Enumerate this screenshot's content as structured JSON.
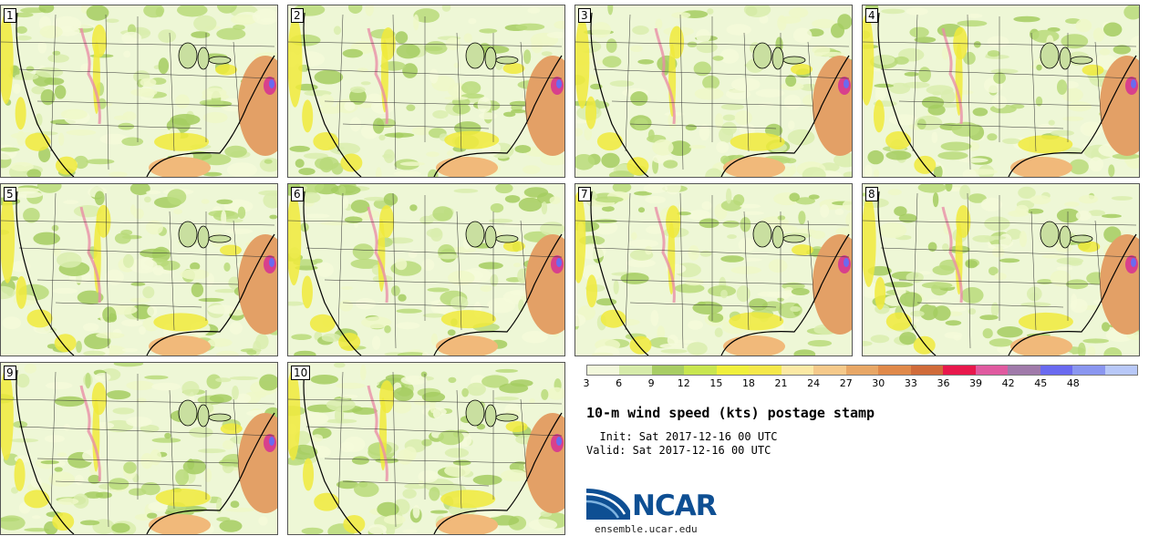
{
  "stamps": [
    {
      "label": "1"
    },
    {
      "label": "2"
    },
    {
      "label": "3"
    },
    {
      "label": "4"
    },
    {
      "label": "5"
    },
    {
      "label": "6"
    },
    {
      "label": "7"
    },
    {
      "label": "8"
    },
    {
      "label": "9"
    },
    {
      "label": "10"
    }
  ],
  "colorbar": {
    "ticks": [
      "3",
      "6",
      "9",
      "12",
      "15",
      "18",
      "21",
      "24",
      "27",
      "30",
      "33",
      "36",
      "39",
      "42",
      "45",
      "48"
    ],
    "colors": [
      "#f2f8dc",
      "#d6ebaa",
      "#a8cd64",
      "#c8e650",
      "#f0f03c",
      "#f5e84a",
      "#fbe9a5",
      "#f5c98a",
      "#e8a766",
      "#e0894a",
      "#d06b3a",
      "#e8184c",
      "#e05aa0",
      "#a07aaa",
      "#6a6af0",
      "#8a96f0",
      "#b8c8f8"
    ]
  },
  "title": "10-m wind speed (kts) postage stamp",
  "init": "  Init: Sat 2017-12-16 00 UTC",
  "valid": "Valid: Sat 2017-12-16 00 UTC",
  "logo_text": "NCAR",
  "site": "ensemble.ucar.edu"
}
